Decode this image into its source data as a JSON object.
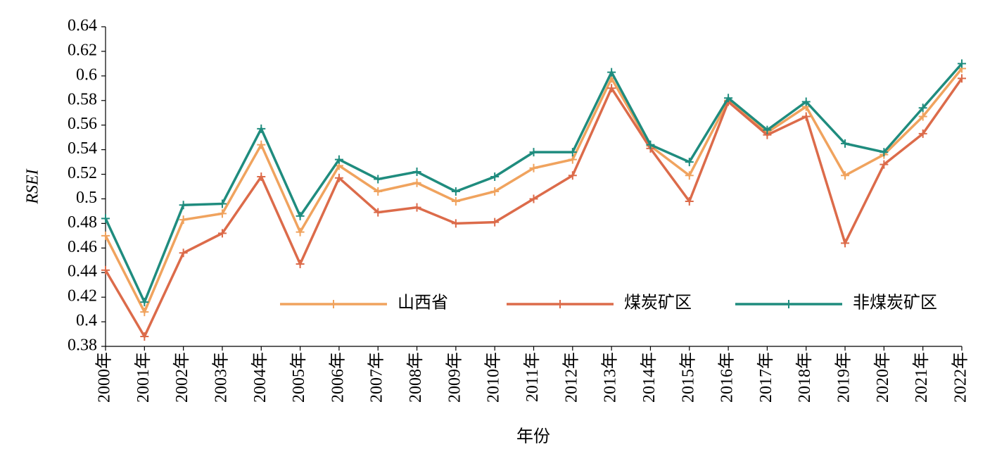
{
  "chart_data": {
    "type": "line",
    "x_label": "年份",
    "y_label": "RSEI",
    "categories": [
      "2000年",
      "2001年",
      "2002年",
      "2003年",
      "2004年",
      "2005年",
      "2006年",
      "2007年",
      "2008年",
      "2009年",
      "2010年",
      "2011年",
      "2012年",
      "2013年",
      "2014年",
      "2015年",
      "2016年",
      "2017年",
      "2018年",
      "2019年",
      "2020年",
      "2021年",
      "2022年"
    ],
    "series": [
      {
        "name": "山西省",
        "color": "#f0a35e",
        "values": [
          0.47,
          0.408,
          0.483,
          0.488,
          0.544,
          0.473,
          0.527,
          0.506,
          0.513,
          0.498,
          0.506,
          0.525,
          0.532,
          0.598,
          0.543,
          0.519,
          0.58,
          0.554,
          0.575,
          0.519,
          0.536,
          0.567,
          0.606
        ]
      },
      {
        "name": "煤炭矿区",
        "color": "#dc6b4a",
        "values": [
          0.442,
          0.388,
          0.456,
          0.472,
          0.518,
          0.447,
          0.517,
          0.489,
          0.493,
          0.48,
          0.481,
          0.5,
          0.519,
          0.59,
          0.541,
          0.498,
          0.579,
          0.552,
          0.567,
          0.464,
          0.528,
          0.553,
          0.598
        ]
      },
      {
        "name": "非煤炭矿区",
        "color": "#1f8c7e",
        "values": [
          0.484,
          0.416,
          0.495,
          0.496,
          0.557,
          0.486,
          0.532,
          0.516,
          0.522,
          0.506,
          0.518,
          0.538,
          0.538,
          0.603,
          0.544,
          0.53,
          0.582,
          0.556,
          0.579,
          0.545,
          0.538,
          0.574,
          0.61
        ]
      }
    ],
    "ylim": [
      0.38,
      0.64
    ],
    "yticks": [
      0.38,
      0.4,
      0.42,
      0.44,
      0.46,
      0.48,
      0.5,
      0.52,
      0.54,
      0.56,
      0.58,
      0.6,
      0.62,
      0.64
    ],
    "grid": false,
    "legend_loc": "lower center"
  }
}
